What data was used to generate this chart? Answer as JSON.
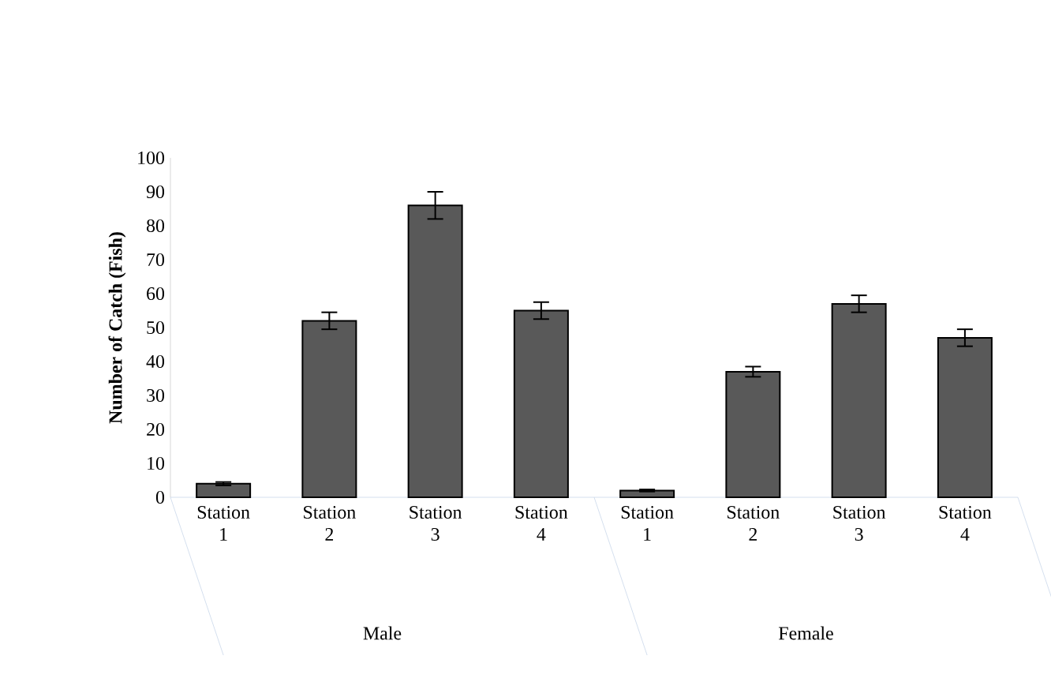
{
  "chart_data": {
    "type": "bar",
    "ylabel": "Number of Catch (Fish)",
    "categories": [
      "Station 1",
      "Station 2",
      "Station 3",
      "Station 4",
      "Station 1",
      "Station 2",
      "Station 3",
      "Station 4"
    ],
    "values": [
      4,
      52,
      86,
      55,
      2,
      37,
      57,
      47
    ],
    "errors": [
      0.5,
      2.5,
      4,
      2.5,
      0.3,
      1.5,
      2.5,
      2.5
    ],
    "color": "#595959",
    "ylim": [
      0,
      100
    ],
    "yticks": [
      0,
      10,
      20,
      30,
      40,
      50,
      60,
      70,
      80,
      90,
      100
    ],
    "annotations": [
      "Male",
      "Female"
    ]
  }
}
